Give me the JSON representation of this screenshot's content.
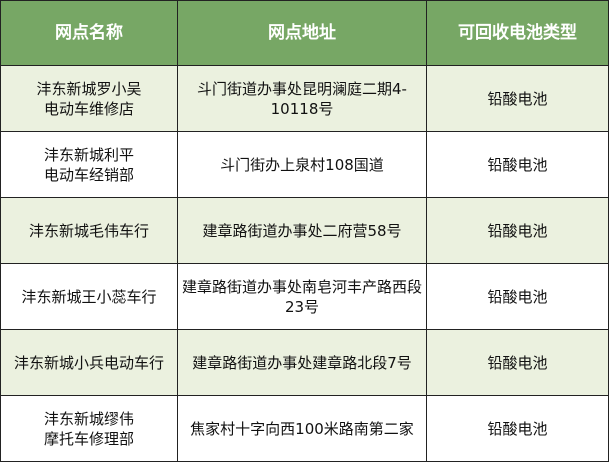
{
  "table": {
    "headers": [
      "网点名称",
      "网点地址",
      "可回收电池类型"
    ],
    "rows": [
      [
        "沣东新城罗小吴\n电动车维修店",
        "斗门街道办事处昆明澜庭二期4-10118号",
        "铅酸电池"
      ],
      [
        "沣东新城利平\n电动车经销部",
        "斗门街办上泉村108国道",
        "铅酸电池"
      ],
      [
        "沣东新城毛伟车行",
        "建章路街道办事处二府营58号",
        "铅酸电池"
      ],
      [
        "沣东新城王小蕊车行",
        "建章路街道办事处南皂河丰产路西段23号",
        "铅酸电池"
      ],
      [
        "沣东新城小兵电动车行",
        "建章路街道办事处建章路北段7号",
        "铅酸电池"
      ],
      [
        "沣东新城缪伟\n摩托车修理部",
        "焦家村十字向西100米路南第二家",
        "铅酸电池"
      ]
    ]
  },
  "colors": {
    "header_bg": "#77a765",
    "alt_row_bg": "#ebf1df",
    "border": "#222222"
  }
}
